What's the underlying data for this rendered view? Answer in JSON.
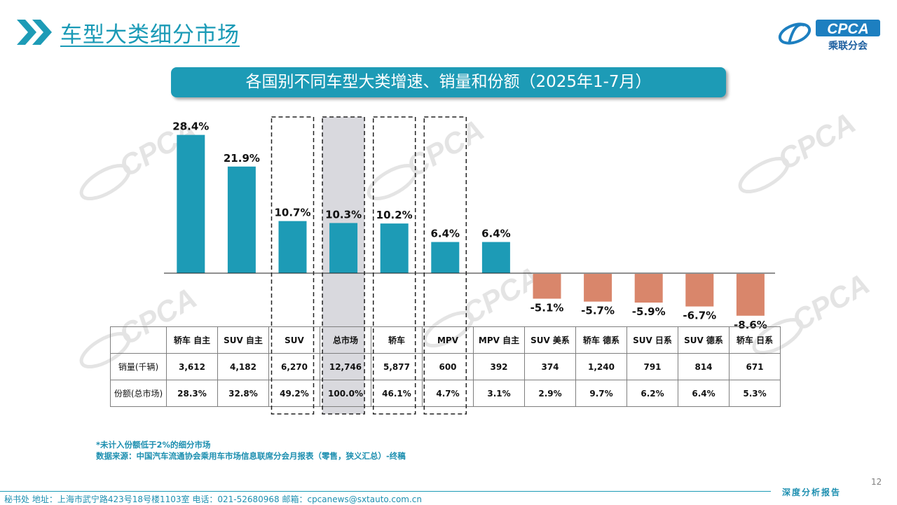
{
  "header": {
    "title": "车型大类细分市场",
    "logo_brand": "CPCA",
    "logo_subtitle": "乘联分会"
  },
  "chart_banner": "各国别不同车型大类增速、销量和份额（2025年1-7月）",
  "chart_data": {
    "type": "bar",
    "title": "各国别不同车型大类增速、销量和份额（2025年1-7月）",
    "categories": [
      "轿车 自主",
      "SUV 自主",
      "SUV",
      "总市场",
      "轿车",
      "MPV",
      "MPV 自主",
      "SUV 美系",
      "轿车 德系",
      "SUV 日系",
      "SUV 德系",
      "轿车 日系"
    ],
    "values": [
      28.4,
      21.9,
      10.7,
      10.3,
      10.2,
      6.4,
      6.4,
      -5.1,
      -5.7,
      -5.9,
      -6.7,
      -8.6
    ],
    "labels": [
      "28.4%",
      "21.9%",
      "10.7%",
      "10.3%",
      "10.2%",
      "6.4%",
      "6.4%",
      "-5.1%",
      "-5.7%",
      "-5.9%",
      "-6.7%",
      "-8.6%"
    ],
    "ylim": [
      -9,
      29
    ],
    "grid": false,
    "colors": {
      "positive": "#1d9bb6",
      "negative": "#d9866b",
      "highlight_column": "#d9d9de"
    },
    "highlighted_columns": [
      "SUV",
      "总市场",
      "轿车",
      "MPV"
    ],
    "shaded_column": "总市场"
  },
  "table": {
    "rows": [
      {
        "label": "销量(千辆)",
        "values": [
          "3,612",
          "4,182",
          "6,270",
          "12,746",
          "5,877",
          "600",
          "392",
          "374",
          "1,240",
          "791",
          "814",
          "671"
        ]
      },
      {
        "label": "份额(总市场)",
        "values": [
          "28.3%",
          "32.8%",
          "49.2%",
          "100.0%",
          "46.1%",
          "4.7%",
          "3.1%",
          "2.9%",
          "9.7%",
          "6.2%",
          "6.4%",
          "5.3%"
        ]
      }
    ]
  },
  "footnotes": [
    "*未计入份额低于2%的细分市场",
    "数据来源：中国汽车流通协会乘用车市场信息联席分会月报表（零售，狭义汇总）-终稿"
  ],
  "footer": {
    "contact": "秘书处   地址：上海市武宁路423号18号楼1103室  电话：021-52680968   邮箱：cpcanews@sxtauto.com.cn",
    "report_label": "深度分析报告",
    "page_number": "12"
  },
  "icons": {
    "title_marker": "double-chevron-icon",
    "brand": "cpca-logo-icon"
  }
}
